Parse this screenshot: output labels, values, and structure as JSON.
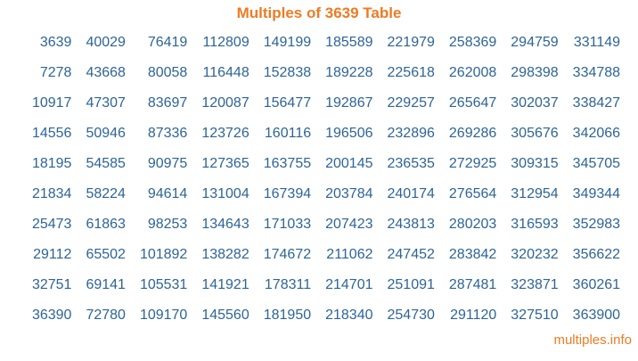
{
  "page": {
    "title": "Multiples of 3639 Table",
    "footer_link": "multiples.info"
  },
  "colors": {
    "accent": "#ED7B22",
    "number_color": "#2D6496",
    "background": "#FFFFFF"
  },
  "table": {
    "base_number": 3639,
    "rows": [
      [
        3639,
        40029,
        76419,
        112809,
        149199,
        185589,
        221979,
        258369,
        294759,
        331149
      ],
      [
        7278,
        43668,
        80058,
        116448,
        152838,
        189228,
        225618,
        262008,
        298398,
        334788
      ],
      [
        10917,
        47307,
        83697,
        120087,
        156477,
        192867,
        229257,
        265647,
        302037,
        338427
      ],
      [
        14556,
        50946,
        87336,
        123726,
        160116,
        196506,
        232896,
        269286,
        305676,
        342066
      ],
      [
        18195,
        54585,
        90975,
        127365,
        163755,
        200145,
        236535,
        272925,
        309315,
        345705
      ],
      [
        21834,
        58224,
        94614,
        131004,
        167394,
        203784,
        240174,
        276564,
        312954,
        349344
      ],
      [
        25473,
        61863,
        98253,
        134643,
        171033,
        207423,
        243813,
        280203,
        316593,
        352983
      ],
      [
        29112,
        65502,
        101892,
        138282,
        174672,
        211062,
        247452,
        283842,
        320232,
        356622
      ],
      [
        32751,
        69141,
        105531,
        141921,
        178311,
        214701,
        251091,
        287481,
        323871,
        360261
      ],
      [
        36390,
        72780,
        109170,
        145560,
        181950,
        218340,
        254730,
        291120,
        327510,
        363900
      ]
    ]
  }
}
